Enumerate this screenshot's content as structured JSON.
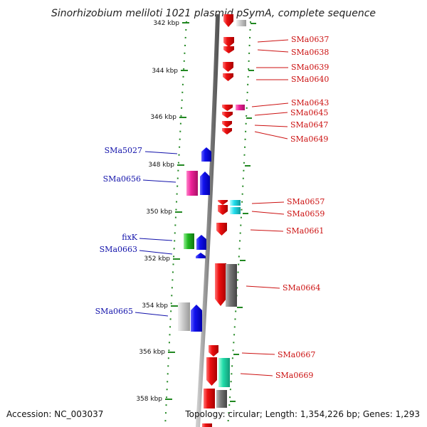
{
  "title": "Sinorhizobium meliloti 1021 plasmid pSymA, complete sequence",
  "footer": {
    "accession": "Accession: NC_003037",
    "topology": "Topology: circular; Length: 1,354,226 bp; Genes: 1,293"
  },
  "colors": {
    "red": "#ee1111",
    "blue": "#1111ee",
    "magenta": "#ee2299",
    "cyan": "#22ddee",
    "green": "#22bb22",
    "teal": "#22ddaa",
    "gray": "#888888",
    "lightgray": "#cccccc",
    "tick": "#228822",
    "label_red": "#cc1111",
    "label_blue": "#1111aa"
  },
  "ticks": [
    "342 kbp",
    "344 kbp",
    "346 kbp",
    "348 kbp",
    "350 kbp",
    "352 kbp",
    "354 kbp",
    "356 kbp",
    "358 kbp"
  ],
  "right_labels": [
    "SMa0637",
    "SMa0638",
    "SMa0639",
    "SMa0640",
    "SMa0643",
    "SMa0645",
    "SMa0647",
    "SMa0649",
    "SMa0657",
    "SMa0659",
    "SMa0661",
    "SMa0664",
    "SMa0667",
    "SMa0669"
  ],
  "left_labels": [
    "SMa5027",
    "SMa0656",
    "fixK",
    "SMa0663",
    "SMa0665"
  ]
}
